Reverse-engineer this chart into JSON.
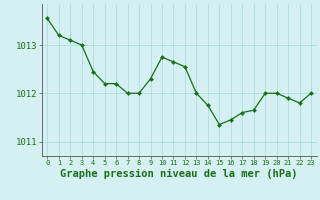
{
  "x": [
    0,
    1,
    2,
    3,
    4,
    5,
    6,
    7,
    8,
    9,
    10,
    11,
    12,
    13,
    14,
    15,
    16,
    17,
    18,
    19,
    20,
    21,
    22,
    23
  ],
  "y": [
    1013.55,
    1013.2,
    1013.1,
    1013.0,
    1012.45,
    1012.2,
    1012.2,
    1012.0,
    1012.0,
    1012.3,
    1012.75,
    1012.65,
    1012.55,
    1012.0,
    1011.75,
    1011.35,
    1011.45,
    1011.6,
    1011.65,
    1012.0,
    1012.0,
    1011.9,
    1011.8,
    1012.0
  ],
  "line_color": "#1a6e1a",
  "marker": "D",
  "marker_size": 2.0,
  "bg_color": "#d4f0f0",
  "grid_color": "#aadddd",
  "text_color": "#1a6e1a",
  "title": "Graphe pression niveau de la mer (hPa)",
  "title_fontsize": 7.5,
  "yticks": [
    1011,
    1012,
    1013
  ],
  "ylim": [
    1010.7,
    1013.85
  ],
  "xlim": [
    -0.5,
    23.5
  ],
  "xtick_fontsize": 5.0,
  "ytick_fontsize": 6.5
}
